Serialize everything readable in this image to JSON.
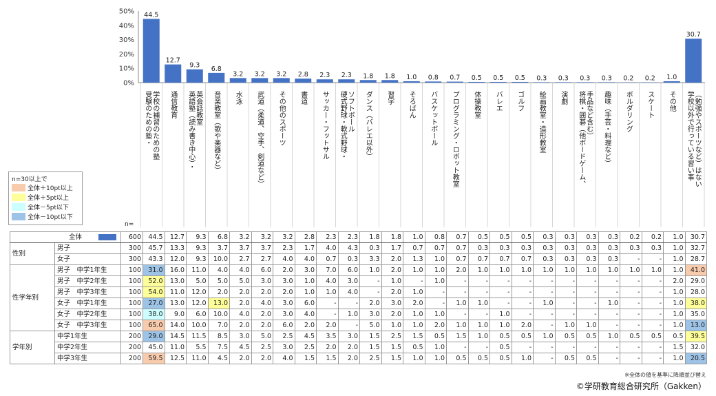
{
  "chart_data": {
    "type": "bar",
    "yticks": [
      "50%",
      "40%",
      "30%",
      "20%",
      "10%",
      "0%"
    ],
    "ylim": [
      0,
      50
    ],
    "bar_color": "#4472C4",
    "categories": [
      "学校の補習のための塾",
      "受験のための塾・",
      "通信教育",
      "英会話教室",
      "英語塾（読み書き中心）・",
      "音楽教室（歌や楽器など）",
      "水泳",
      "武道（柔道、空手、剣道など）",
      "その他のスポーツ",
      "書道",
      "サッカー・フットサル",
      "ソフトボール",
      "硬式野球・軟式野球・",
      "ダンス（バレエ以外）",
      "習字",
      "そろばん",
      "バスケットボール",
      "プログラミング・ロボット教室",
      "体操教室",
      "バレエ",
      "ゴルフ",
      "絵画教室・造形教室",
      "演劇",
      "手品など含む）",
      "将棋・囲碁（他ボードゲーム、",
      "趣味（手芸・料理など）",
      "ボルダリング",
      "スケート",
      "その他",
      "（勉強やスポーツなど）はない",
      "学校以外で行っている習い事"
    ],
    "bars": [
      {
        "label": "学校の補習のための塾",
        "label2": "受験のための塾・",
        "value": 44.5,
        "display": "44.5"
      },
      {
        "label": "通信教育",
        "label2": "",
        "value": 12.7,
        "display": "12.7"
      },
      {
        "label": "英会話教室",
        "label2": "英語塾（読み書き中心）・",
        "value": 9.3,
        "display": "9.3"
      },
      {
        "label": "音楽教室（歌や楽器など）",
        "label2": "",
        "value": 6.8,
        "display": "6.8"
      },
      {
        "label": "水泳",
        "label2": "",
        "value": 3.2,
        "display": "3.2"
      },
      {
        "label": "武道（柔道、空手、剣道など）",
        "label2": "",
        "value": 3.2,
        "display": "3.2"
      },
      {
        "label": "その他のスポーツ",
        "label2": "",
        "value": 3.2,
        "display": "3.2"
      },
      {
        "label": "書道",
        "label2": "",
        "value": 2.8,
        "display": "2.8"
      },
      {
        "label": "サッカー・フットサル",
        "label2": "",
        "value": 2.3,
        "display": "2.3"
      },
      {
        "label": "ソフトボール",
        "label2": "硬式野球・軟式野球・",
        "value": 2.3,
        "display": "2.3"
      },
      {
        "label": "ダンス（バレエ以外）",
        "label2": "",
        "value": 1.8,
        "display": "1.8"
      },
      {
        "label": "習字",
        "label2": "",
        "value": 1.8,
        "display": "1.8"
      },
      {
        "label": "そろばん",
        "label2": "",
        "value": 1.0,
        "display": "1.0"
      },
      {
        "label": "バスケットボール",
        "label2": "",
        "value": 0.8,
        "display": "0.8"
      },
      {
        "label": "プログラミング・ロボット教室",
        "label2": "",
        "value": 0.7,
        "display": "0.7"
      },
      {
        "label": "体操教室",
        "label2": "",
        "value": 0.5,
        "display": "0.5"
      },
      {
        "label": "バレエ",
        "label2": "",
        "value": 0.5,
        "display": "0.5"
      },
      {
        "label": "ゴルフ",
        "label2": "",
        "value": 0.5,
        "display": "0.5"
      },
      {
        "label": "絵画教室・造形教室",
        "label2": "",
        "value": 0.3,
        "display": "0.3"
      },
      {
        "label": "演劇",
        "label2": "",
        "value": 0.3,
        "display": "0.3"
      },
      {
        "label": "手品など含む）",
        "label2": "将棋・囲碁（他ボードゲーム、",
        "value": 0.3,
        "display": "0.3"
      },
      {
        "label": "趣味（手芸・料理など）",
        "label2": "",
        "value": 0.3,
        "display": "0.3"
      },
      {
        "label": "ボルダリング",
        "label2": "",
        "value": 0.2,
        "display": "0.2"
      },
      {
        "label": "スケート",
        "label2": "",
        "value": 0.2,
        "display": "0.2"
      },
      {
        "label": "その他",
        "label2": "",
        "value": 1.0,
        "display": "1.0"
      },
      {
        "label": "（勉強やスポーツなど）はない",
        "label2": "学校以外で行っている習い事",
        "value": 30.7,
        "display": "30.7"
      }
    ]
  },
  "legend": {
    "title": "n=30以上で",
    "items": [
      {
        "label": "全体＋10pt以上",
        "color": "#F8CBAD"
      },
      {
        "label": "全体＋5pt以上",
        "color": "#FFFF99"
      },
      {
        "label": "全体－5pt以下",
        "color": "#CCFFFF"
      },
      {
        "label": "全体－10pt以下",
        "color": "#9DC3E6"
      }
    ]
  },
  "n_label": "n=",
  "table": {
    "rows": [
      {
        "group": "",
        "sub": "全体",
        "n": "600",
        "vals": [
          "44.5",
          "12.7",
          "9.3",
          "6.8",
          "3.2",
          "3.2",
          "3.2",
          "2.8",
          "2.3",
          "2.3",
          "1.8",
          "1.8",
          "1.0",
          "0.8",
          "0.7",
          "0.5",
          "0.5",
          "0.5",
          "0.3",
          "0.3",
          "0.3",
          "0.3",
          "0.2",
          "0.2",
          "1.0",
          "30.7"
        ],
        "hl": []
      },
      {
        "group": "性別",
        "sub": "男子",
        "n": "300",
        "vals": [
          "45.7",
          "13.3",
          "9.3",
          "3.7",
          "3.7",
          "3.7",
          "2.3",
          "1.7",
          "4.0",
          "4.3",
          "0.3",
          "1.7",
          "0.7",
          "0.7",
          "0.7",
          "0.3",
          "0.3",
          "0.3",
          "0.3",
          "0.3",
          "0.3",
          "0.3",
          "0.3",
          "0.3",
          "1.0",
          "32.7"
        ],
        "hl": []
      },
      {
        "group": "",
        "sub": "女子",
        "n": "300",
        "vals": [
          "43.3",
          "12.0",
          "9.3",
          "10.0",
          "2.7",
          "2.7",
          "4.0",
          "4.0",
          "0.7",
          "0.3",
          "3.3",
          "2.0",
          "1.3",
          "1.0",
          "0.7",
          "0.7",
          "0.7",
          "0.7",
          "0.3",
          "0.3",
          "0.3",
          "0.3",
          "-",
          "-",
          "1.0",
          "28.7"
        ],
        "hl": []
      },
      {
        "group": "性学年別",
        "sub": "男子　中学1年生",
        "n": "100",
        "vals": [
          "31.0",
          "16.0",
          "11.0",
          "4.0",
          "4.0",
          "6.0",
          "2.0",
          "3.0",
          "7.0",
          "6.0",
          "1.0",
          "2.0",
          "1.0",
          "1.0",
          "2.0",
          "1.0",
          "1.0",
          "1.0",
          "1.0",
          "1.0",
          "1.0",
          "1.0",
          "1.0",
          "1.0",
          "1.0",
          "41.0"
        ],
        "hl": [
          [
            0,
            "#9DC3E6"
          ],
          [
            25,
            "#F8CBAD"
          ]
        ]
      },
      {
        "group": "",
        "sub": "男子　中学2年生",
        "n": "100",
        "vals": [
          "52.0",
          "13.0",
          "5.0",
          "5.0",
          "5.0",
          "3.0",
          "3.0",
          "1.0",
          "4.0",
          "3.0",
          "-",
          "1.0",
          "-",
          "1.0",
          "-",
          "-",
          "-",
          "-",
          "-",
          "-",
          "-",
          "-",
          "-",
          "-",
          "2.0",
          "29.0"
        ],
        "hl": [
          [
            0,
            "#FFFF99"
          ]
        ]
      },
      {
        "group": "",
        "sub": "男子　中学3年生",
        "n": "100",
        "vals": [
          "54.0",
          "11.0",
          "12.0",
          "2.0",
          "2.0",
          "2.0",
          "2.0",
          "1.0",
          "1.0",
          "4.0",
          "-",
          "2.0",
          "1.0",
          "-",
          "-",
          "-",
          "-",
          "-",
          "-",
          "-",
          "-",
          "-",
          "-",
          "-",
          "1.0",
          "28.0"
        ],
        "hl": [
          [
            0,
            "#FFFF99"
          ]
        ]
      },
      {
        "group": "",
        "sub": "女子　中学1年生",
        "n": "100",
        "vals": [
          "27.0",
          "13.0",
          "12.0",
          "13.0",
          "2.0",
          "4.0",
          "3.0",
          "6.0",
          "-",
          "-",
          "2.0",
          "3.0",
          "2.0",
          "-",
          "1.0",
          "1.0",
          "-",
          "-",
          "1.0",
          "-",
          "-",
          "1.0",
          "-",
          "-",
          "1.0",
          "38.0"
        ],
        "hl": [
          [
            0,
            "#9DC3E6"
          ],
          [
            3,
            "#FFFF99"
          ],
          [
            25,
            "#FFFF99"
          ]
        ]
      },
      {
        "group": "",
        "sub": "女子　中学2年生",
        "n": "100",
        "vals": [
          "38.0",
          "9.0",
          "6.0",
          "10.0",
          "4.0",
          "2.0",
          "3.0",
          "4.0",
          "-",
          "1.0",
          "3.0",
          "2.0",
          "1.0",
          "1.0",
          "-",
          "-",
          "1.0",
          "-",
          "-",
          "-",
          "-",
          "-",
          "-",
          "-",
          "1.0",
          "35.0"
        ],
        "hl": [
          [
            0,
            "#CCFFFF"
          ]
        ]
      },
      {
        "group": "",
        "sub": "女子　中学3年生",
        "n": "100",
        "vals": [
          "65.0",
          "14.0",
          "10.0",
          "7.0",
          "2.0",
          "2.0",
          "6.0",
          "2.0",
          "2.0",
          "-",
          "5.0",
          "1.0",
          "1.0",
          "2.0",
          "1.0",
          "1.0",
          "1.0",
          "2.0",
          "-",
          "1.0",
          "1.0",
          "-",
          "-",
          "-",
          "1.0",
          "13.0"
        ],
        "hl": [
          [
            0,
            "#F8CBAD"
          ],
          [
            25,
            "#9DC3E6"
          ]
        ]
      },
      {
        "group": "学年別",
        "sub": "中学1年生",
        "n": "200",
        "vals": [
          "29.0",
          "14.5",
          "11.5",
          "8.5",
          "3.0",
          "5.0",
          "2.5",
          "4.5",
          "3.5",
          "3.0",
          "1.5",
          "2.5",
          "1.5",
          "0.5",
          "1.5",
          "1.0",
          "0.5",
          "0.5",
          "1.0",
          "0.5",
          "0.5",
          "1.0",
          "0.5",
          "0.5",
          "0.5",
          "39.5"
        ],
        "hl": [
          [
            0,
            "#9DC3E6"
          ],
          [
            25,
            "#FFFF99"
          ]
        ]
      },
      {
        "group": "",
        "sub": "中学2年生",
        "n": "200",
        "vals": [
          "45.0",
          "11.0",
          "5.5",
          "7.5",
          "4.5",
          "2.5",
          "3.0",
          "2.5",
          "2.0",
          "2.0",
          "1.5",
          "1.5",
          "0.5",
          "1.0",
          "-",
          "-",
          "0.5",
          "-",
          "-",
          "-",
          "-",
          "-",
          "-",
          "-",
          "1.5",
          "32.0"
        ],
        "hl": []
      },
      {
        "group": "",
        "sub": "中学3年生",
        "n": "200",
        "vals": [
          "59.5",
          "12.5",
          "11.0",
          "4.5",
          "2.0",
          "2.0",
          "4.0",
          "1.5",
          "1.5",
          "2.0",
          "2.5",
          "1.5",
          "1.0",
          "1.0",
          "0.5",
          "0.5",
          "0.5",
          "1.0",
          "-",
          "0.5",
          "0.5",
          "-",
          "-",
          "-",
          "1.0",
          "20.5"
        ],
        "hl": [
          [
            0,
            "#F8CBAD"
          ],
          [
            25,
            "#9DC3E6"
          ]
        ]
      }
    ]
  },
  "note": "※全体の値を基準に降順並び替え",
  "copyright": "©学研教育総合研究所（Gakken）"
}
